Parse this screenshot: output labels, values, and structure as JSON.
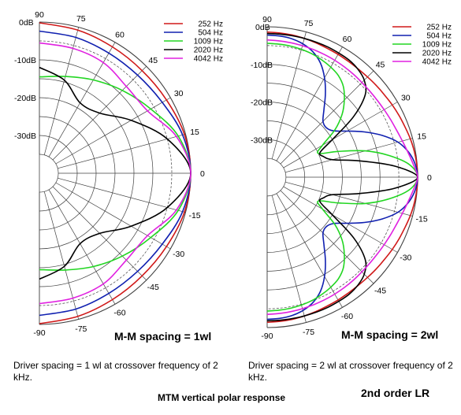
{
  "colors": {
    "252 Hz": "#d01818",
    "504 Hz": "#1020b0",
    "1009 Hz": "#22d622",
    "2020 Hz": "#000000",
    "4042 Hz": "#e020e0",
    "grid": "#404040"
  },
  "chart_data": [
    {
      "type": "polar",
      "label": "M-M spacing = 1wl",
      "caption": "Driver spacing = 1 wl at crossover frequency of 2 kHz.",
      "angle_ticks": [
        "90",
        "75",
        "60",
        "45",
        "30",
        "15",
        "0",
        "-15",
        "-30",
        "-45",
        "-60",
        "-75",
        "-90"
      ],
      "radial_ticks": [
        "0dB",
        "-10dB",
        "-20dB",
        "-30dB"
      ],
      "radial_range_db": [
        -40,
        0
      ],
      "legend": [
        "252 Hz",
        "504 Hz",
        "1009 Hz",
        "2020 Hz",
        "4042 Hz"
      ],
      "angles": [
        0,
        15,
        30,
        45,
        60,
        75,
        90
      ],
      "series": [
        {
          "name": "252 Hz",
          "db": [
            0,
            -0.3,
            -1.2,
            -1.6,
            -1.4,
            -0.8,
            -0.2
          ]
        },
        {
          "name": "504 Hz",
          "db": [
            0,
            -0.8,
            -2.5,
            -3.3,
            -3.3,
            -2.8,
            -2.4
          ]
        },
        {
          "name": "1009 Hz",
          "db": [
            0,
            -2.0,
            -6.0,
            -9.0,
            -11.5,
            -13.5,
            -14.5
          ]
        },
        {
          "name": "2020 Hz",
          "db": [
            0,
            -5.0,
            -12.0,
            -17.5,
            -18.5,
            -14.5,
            -12.0
          ]
        },
        {
          "name": "4042 Hz",
          "db": [
            0,
            -2.5,
            -7.0,
            -7.5,
            -6.2,
            -5.8,
            -5.5
          ]
        }
      ]
    },
    {
      "type": "polar",
      "label": "M-M spacing = 2wl",
      "caption": "Driver spacing = 2 wl at crossover frequency of 2 kHz.",
      "angle_ticks": [
        "90",
        "75",
        "60",
        "45",
        "30",
        "15",
        "0",
        "-15",
        "-30",
        "-45",
        "-60",
        "-75",
        "-90"
      ],
      "radial_ticks": [
        "0dB",
        "-10dB",
        "-20dB",
        "-30dB"
      ],
      "radial_range_db": [
        -40,
        0
      ],
      "legend": [
        "252 Hz",
        "504 Hz",
        "1009 Hz",
        "2020 Hz",
        "4042 Hz"
      ],
      "angles": [
        0,
        5,
        10,
        15,
        20,
        25,
        30,
        35,
        40,
        45,
        50,
        55,
        60,
        65,
        70,
        75,
        80,
        85,
        90
      ],
      "series": [
        {
          "name": "252 Hz",
          "db": [
            0,
            -0.1,
            -0.3,
            -0.6,
            -1.0,
            -1.3,
            -1.6,
            -1.9,
            -2.1,
            -2.3,
            -2.4,
            -2.4,
            -2.3,
            -2.2,
            -2.0,
            -1.8,
            -1.6,
            -1.5,
            -1.4
          ]
        },
        {
          "name": "504 Hz",
          "db": [
            0,
            -0.5,
            -1.8,
            -4.0,
            -7.5,
            -11.5,
            -15.5,
            -18.5,
            -19.5,
            -19.0,
            -16.5,
            -13.0,
            -9.5,
            -6.5,
            -4.5,
            -3.3,
            -2.6,
            -2.3,
            -2.2
          ]
        },
        {
          "name": "1009 Hz",
          "db": [
            0,
            -2.0,
            -7.0,
            -13.0,
            -20.0,
            -25.0,
            -23.0,
            -18.0,
            -14.0,
            -11.0,
            -8.5,
            -7.0,
            -6.2,
            -5.6,
            -5.1,
            -4.8,
            -4.6,
            -4.5,
            -4.4
          ]
        },
        {
          "name": "2020 Hz",
          "db": [
            0,
            -6.0,
            -15.0,
            -22.0,
            -24.0,
            -24.5,
            -20.0,
            -12.0,
            -6.0,
            -3.5,
            -2.5,
            -2.0,
            -1.9,
            -1.8,
            -1.8,
            -1.8,
            -1.8,
            -1.8,
            -1.8
          ]
        },
        {
          "name": "4042 Hz",
          "db": [
            0,
            -1.0,
            -2.0,
            -2.8,
            -3.4,
            -3.8,
            -4.1,
            -4.3,
            -4.4,
            -4.4,
            -4.3,
            -4.2,
            -4.1,
            -4.0,
            -3.9,
            -3.8,
            -3.7,
            -3.6,
            -3.5
          ]
        }
      ]
    }
  ],
  "footer": {
    "title": "MTM vertical polar response",
    "order": "2nd order LR"
  }
}
